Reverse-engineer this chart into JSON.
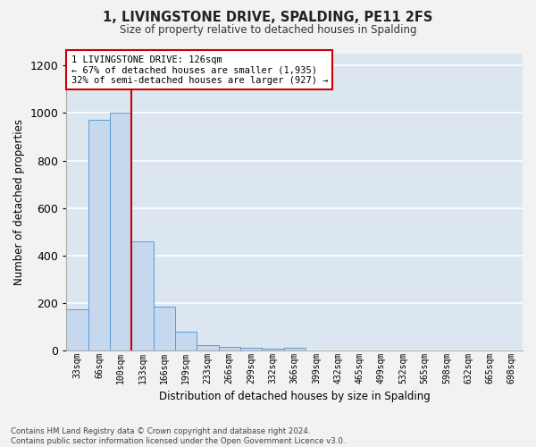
{
  "title": "1, LIVINGSTONE DRIVE, SPALDING, PE11 2FS",
  "subtitle": "Size of property relative to detached houses in Spalding",
  "xlabel": "Distribution of detached houses by size in Spalding",
  "ylabel": "Number of detached properties",
  "bar_color": "#c5d8ed",
  "bar_edge_color": "#5b9bd5",
  "background_color": "#dce6f1",
  "grid_color": "#ffffff",
  "annotation_box_color": "#cc0000",
  "annotation_line_color": "#cc0000",
  "annotation_text": "1 LIVINGSTONE DRIVE: 126sqm\n← 67% of detached houses are smaller (1,935)\n32% of semi-detached houses are larger (927) →",
  "categories": [
    "33sqm",
    "66sqm",
    "100sqm",
    "133sqm",
    "166sqm",
    "199sqm",
    "233sqm",
    "266sqm",
    "299sqm",
    "332sqm",
    "366sqm",
    "399sqm",
    "432sqm",
    "465sqm",
    "499sqm",
    "532sqm",
    "565sqm",
    "598sqm",
    "632sqm",
    "665sqm",
    "698sqm"
  ],
  "values": [
    175,
    970,
    1000,
    460,
    185,
    80,
    22,
    15,
    10,
    8,
    10,
    0,
    0,
    0,
    0,
    0,
    0,
    0,
    0,
    0,
    0
  ],
  "ylim": [
    0,
    1250
  ],
  "yticks": [
    0,
    200,
    400,
    600,
    800,
    1000,
    1200
  ],
  "footnote": "Contains HM Land Registry data © Crown copyright and database right 2024.\nContains public sector information licensed under the Open Government Licence v3.0."
}
